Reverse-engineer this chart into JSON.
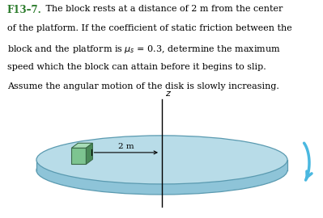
{
  "title_label": "F13–7.",
  "background_color": "#ffffff",
  "disk_top_color": "#b8dce8",
  "disk_side_color": "#8ec4d8",
  "disk_edge_color": "#5a9ab0",
  "block_front_color": "#7dc490",
  "block_top_color": "#a8ddb8",
  "block_side_color": "#4a8a58",
  "label_2m": "2 m",
  "axis_label": "z",
  "arrow_color": "#4ab8e0",
  "text_color": "#000000",
  "label_color": "#2a7a2a"
}
